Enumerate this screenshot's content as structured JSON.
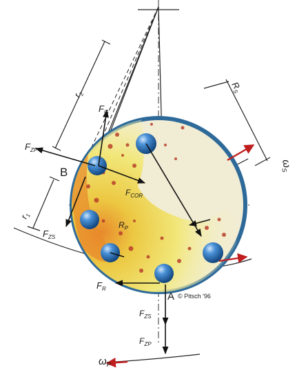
{
  "labels": {
    "point_b": "B",
    "point_a": "A",
    "f_zp_upper": "F",
    "f_zp_upper_sub": "ZP",
    "f_g": "F",
    "f_g_sub": "G",
    "f_cor": "F",
    "f_cor_sub": "COR",
    "f_zs_left": "F",
    "f_zs_left_sub": "ZS",
    "r_p": "R",
    "r_p_sub": "P",
    "r_s": "R",
    "r_s_sub": "S",
    "r_1": "r",
    "r_1_sub": "1",
    "r_2": "r",
    "r_2_sub": "2",
    "f_r": "F",
    "f_r_sub": "R",
    "f_zs_bottom": "F",
    "f_zs_bottom_sub": "ZS",
    "f_zp_bottom": "F",
    "f_zp_bottom_sub": "ZP",
    "omega_s": "ω",
    "omega_s_sub": "S",
    "omega_p": "ω",
    "omega_p_sub": "P"
  },
  "copyright": "© Pitsch '96",
  "colors": {
    "bowl_rim": "#2e6a99",
    "bowl_fill": "#f1ecd4",
    "powder_yellow": "#ecd64a",
    "powder_orange": "#e8892b",
    "ball": "#2f76c4",
    "speck": "#b8402a",
    "arrow_red": "#c01e1e"
  }
}
